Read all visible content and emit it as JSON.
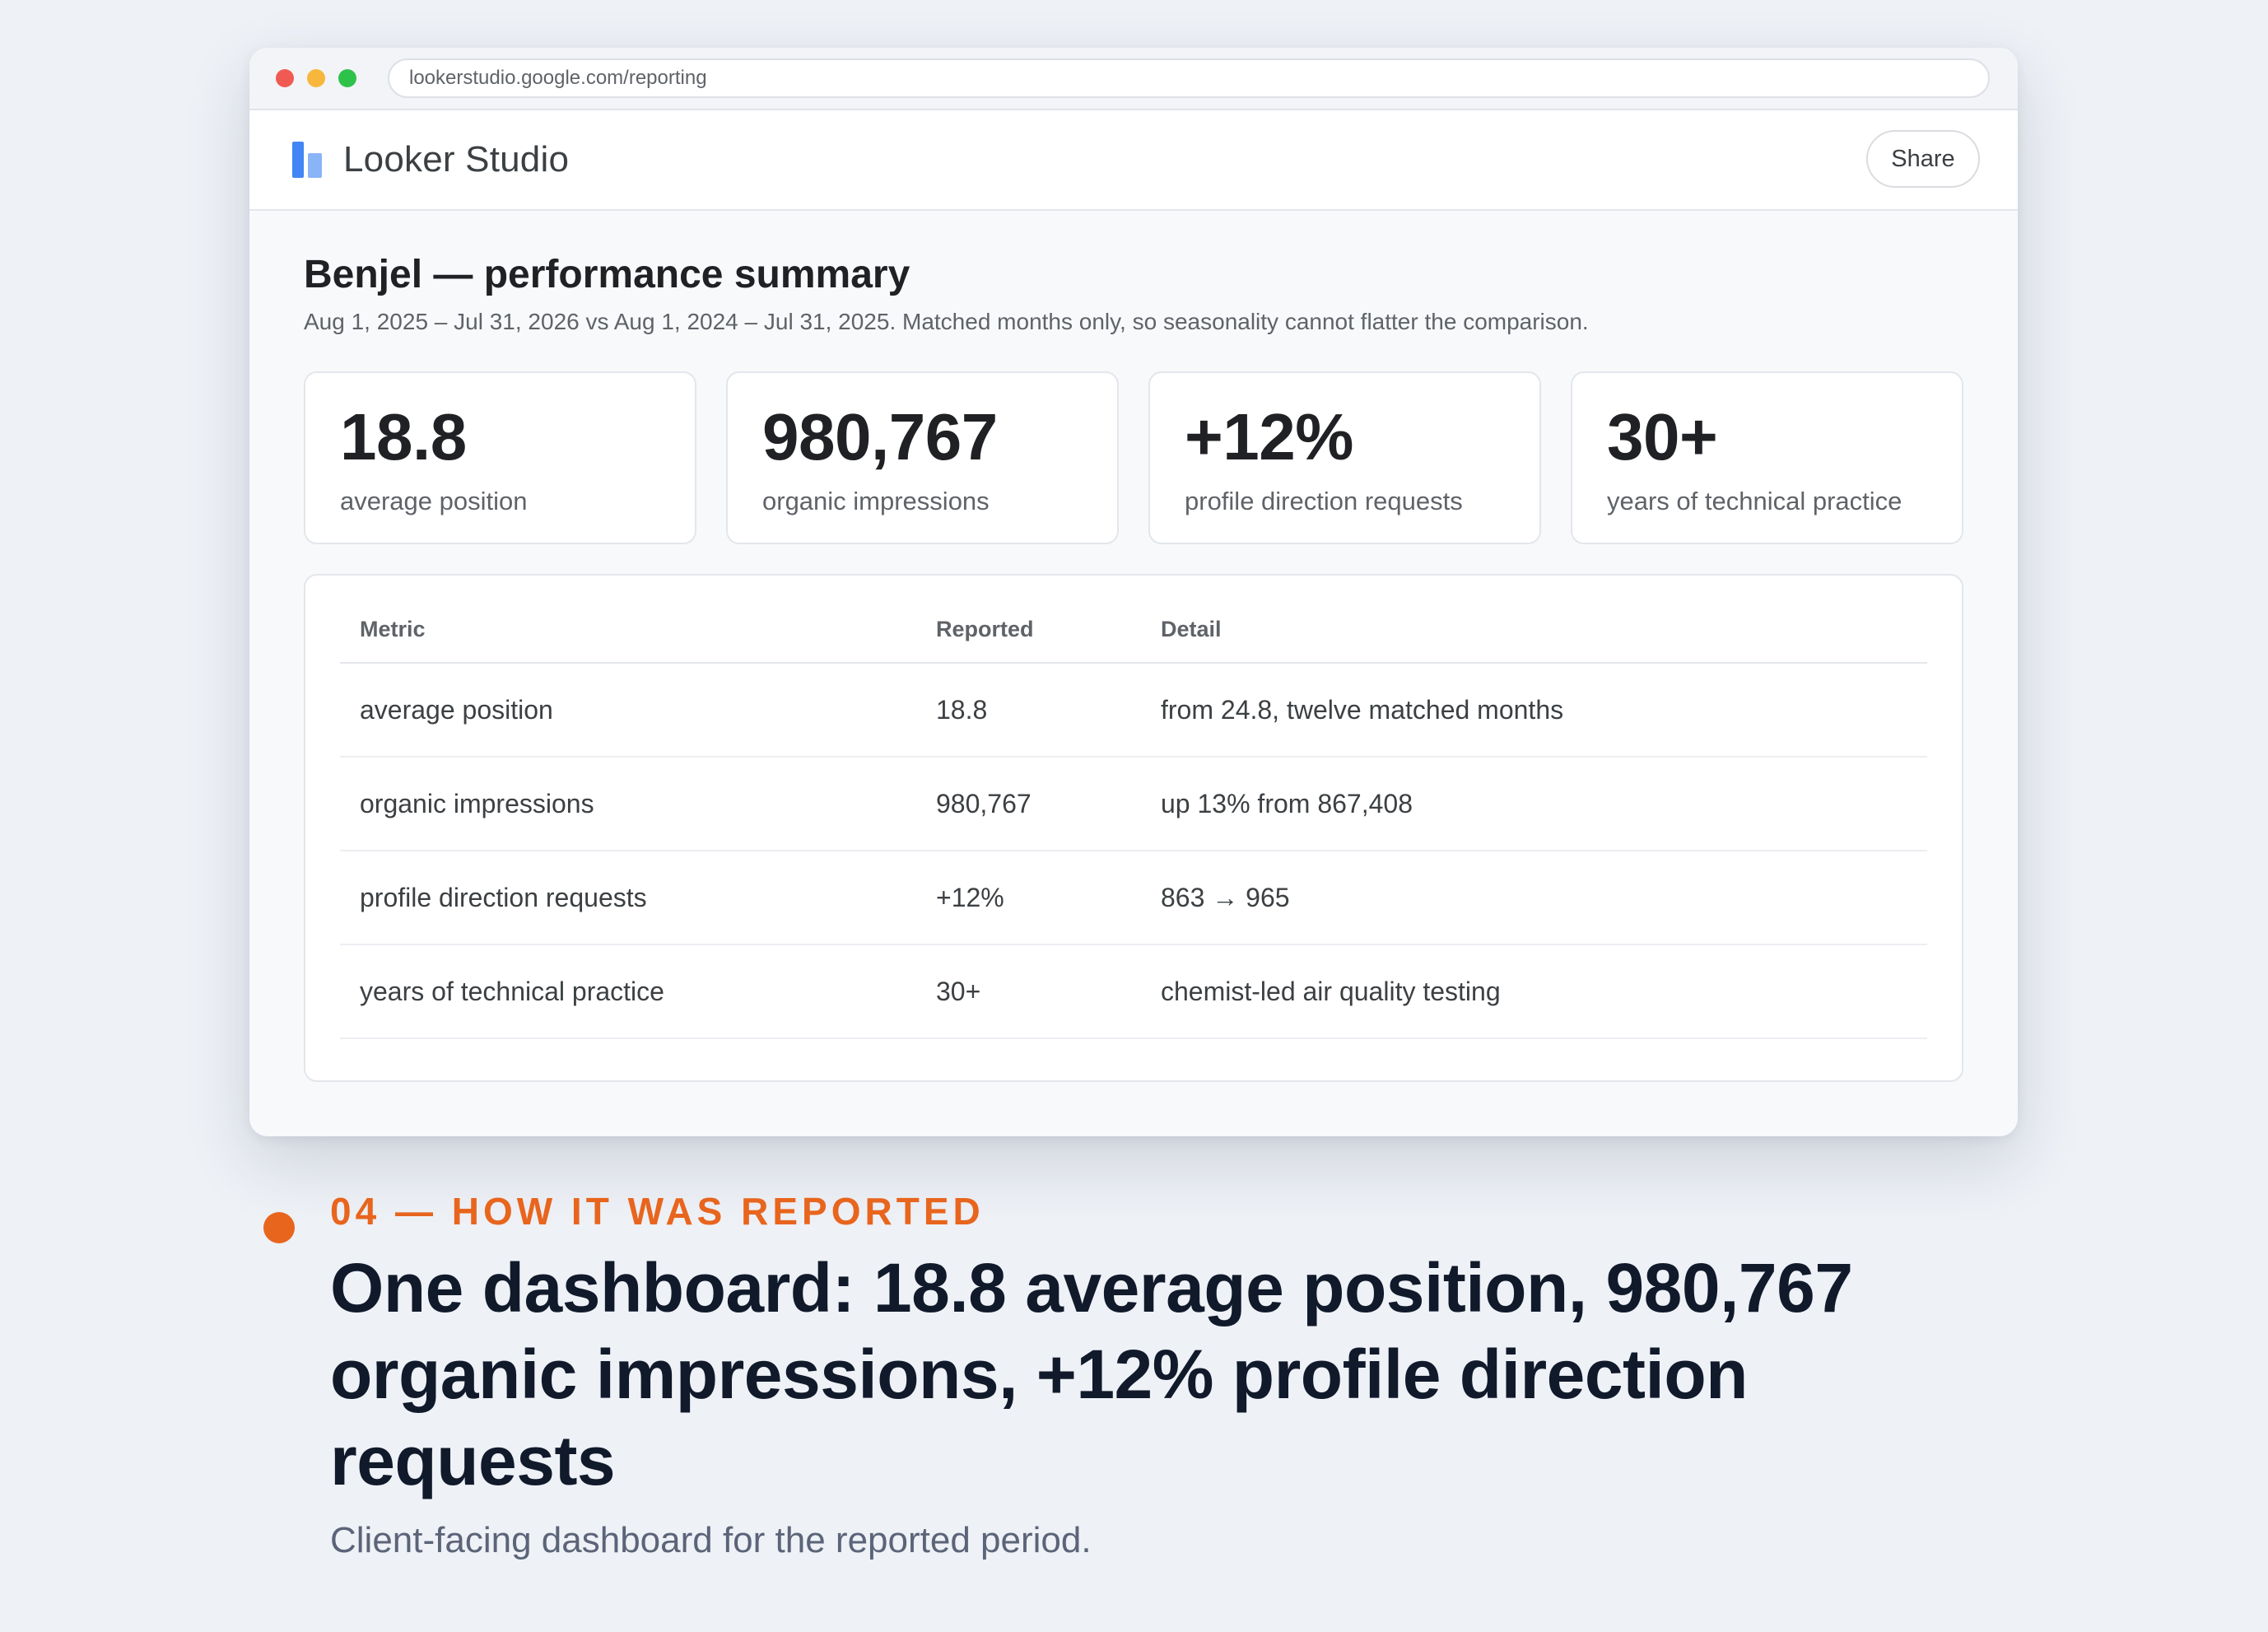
{
  "browser": {
    "url": "lookerstudio.google.com/reporting"
  },
  "app": {
    "name": "Looker Studio",
    "share_label": "Share"
  },
  "report": {
    "title": "Benjel — performance summary",
    "subtitle": "Aug 1, 2025 – Jul 31, 2026 vs Aug 1, 2024 – Jul 31, 2025. Matched months only, so seasonality cannot flatter the comparison.",
    "kpis": [
      {
        "value": "18.8",
        "label": "average position"
      },
      {
        "value": "980,767",
        "label": "organic impressions"
      },
      {
        "value": "+12%",
        "label": "profile direction requests"
      },
      {
        "value": "30+",
        "label": "years of technical practice"
      }
    ],
    "table": {
      "headers": [
        "Metric",
        "Reported",
        "Detail"
      ],
      "rows": [
        [
          "average position",
          "18.8",
          "from 24.8, twelve matched months"
        ],
        [
          "organic impressions",
          "980,767",
          "up 13% from 867,408"
        ],
        [
          "profile direction requests",
          "+12%",
          "863 → 965"
        ],
        [
          "years of technical practice",
          "30+",
          "chemist-led air quality testing"
        ]
      ]
    }
  },
  "caption": {
    "eyebrow": "04 — HOW IT WAS REPORTED",
    "headline": "One dashboard: 18.8 average position, 980,767 organic impressions, +12% profile direction requests",
    "sub": "Client-facing dashboard for the reported period."
  },
  "colors": {
    "accent": "#e8651e",
    "logo_primary": "#4285f4",
    "logo_secondary": "#8ab4f8"
  }
}
